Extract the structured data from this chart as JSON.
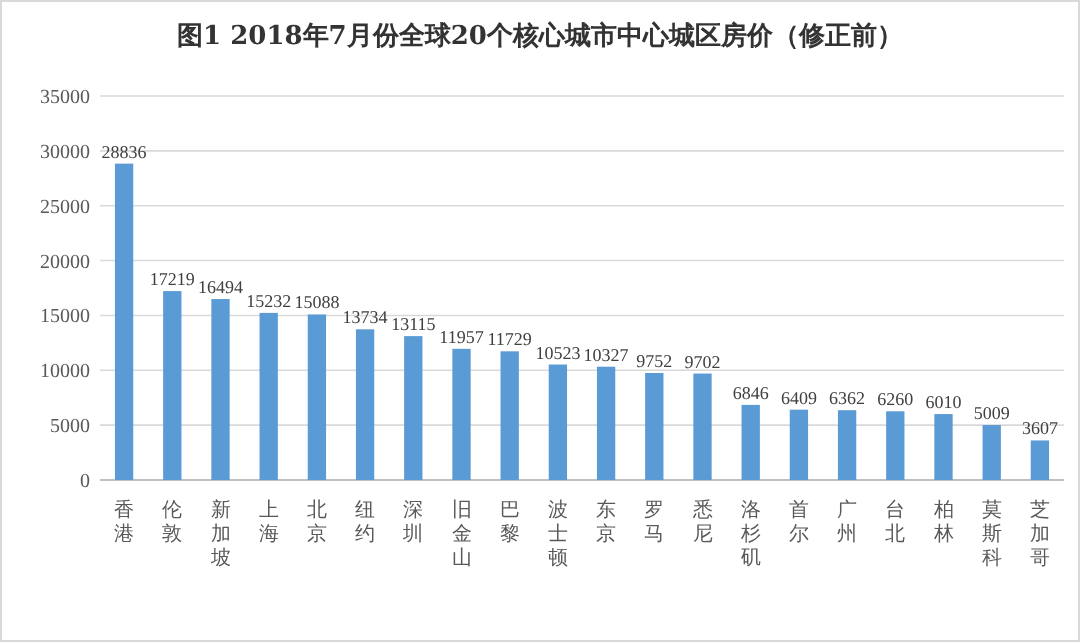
{
  "chart_data": {
    "type": "bar",
    "title": "图1  2018年7月份全球20个核心城市中心城区房价（修正前）",
    "categories": [
      "香港",
      "伦敦",
      "新加坡",
      "上海",
      "北京",
      "纽约",
      "深圳",
      "旧金山",
      "巴黎",
      "波士顿",
      "东京",
      "罗马",
      "悉尼",
      "洛杉矶",
      "首尔",
      "广州",
      "台北",
      "柏林",
      "莫斯科",
      "芝加哥"
    ],
    "values": [
      28836,
      17219,
      16494,
      15232,
      15088,
      13734,
      13115,
      11957,
      11729,
      10523,
      10327,
      9752,
      9702,
      6846,
      6409,
      6362,
      6260,
      6010,
      5009,
      3607
    ],
    "color": "#5b9bd5",
    "ylim": [
      0,
      35000
    ],
    "yticks": [
      0,
      5000,
      10000,
      15000,
      20000,
      25000,
      30000,
      35000
    ],
    "grid": "y",
    "data_labels": true
  }
}
